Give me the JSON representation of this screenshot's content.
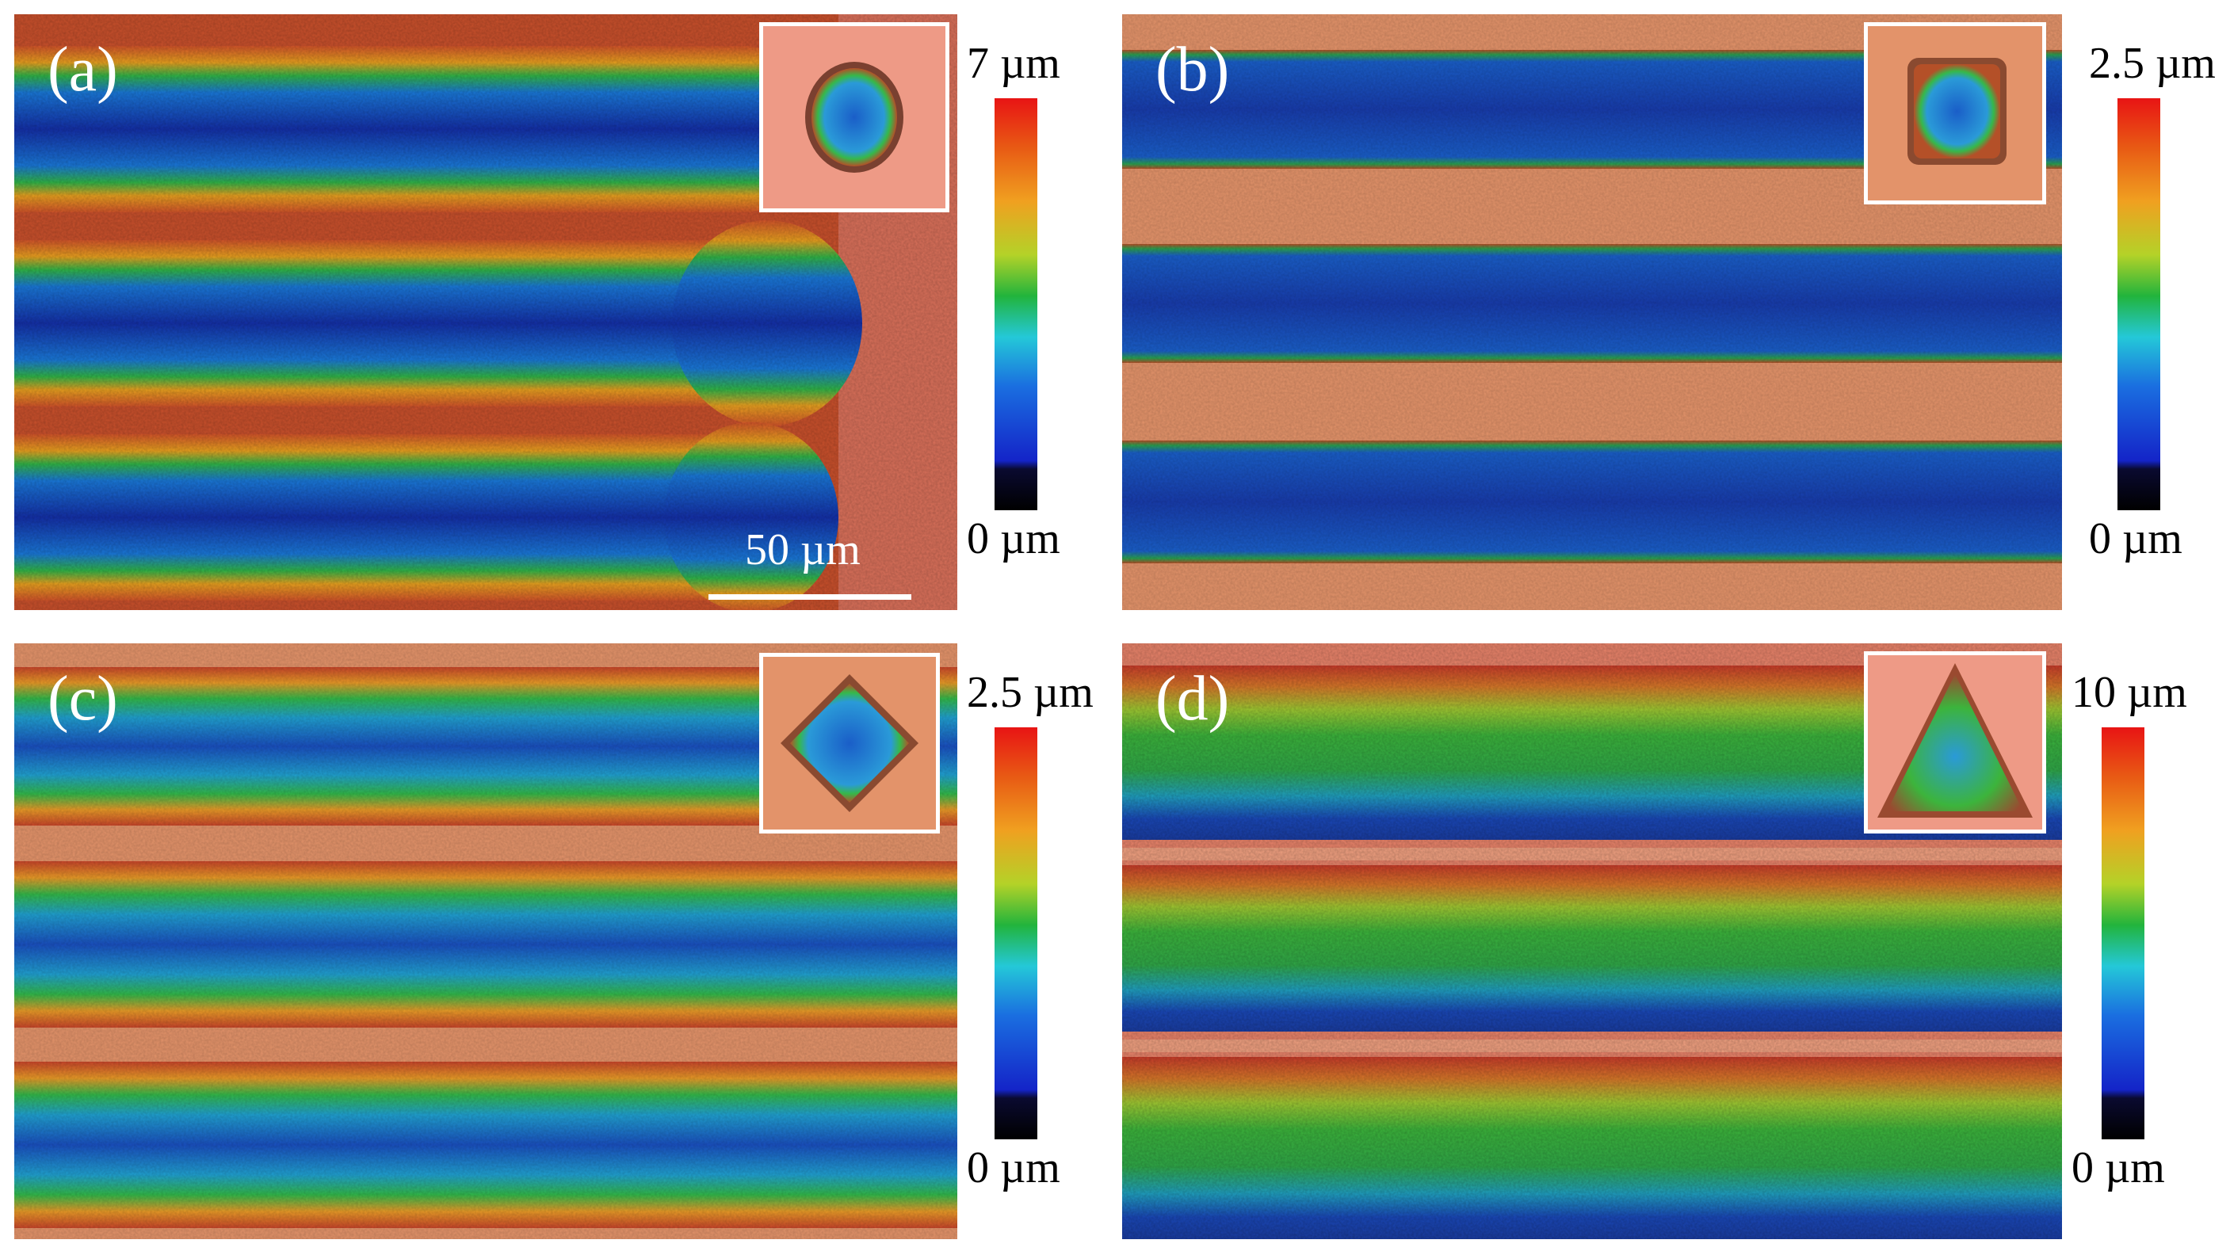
{
  "panels": [
    {
      "label": "(a)",
      "colorbar": {
        "max": "7 µm",
        "min": "0 µm"
      },
      "scale_bar": "50 µm",
      "inset_shape": "circle",
      "background_color": "#d9705a"
    },
    {
      "label": "(b)",
      "colorbar": {
        "max": "2.5 µm",
        "min": "0 µm"
      },
      "inset_shape": "square",
      "background_color": "#e3936a"
    },
    {
      "label": "(c)",
      "colorbar": {
        "max": "2.5 µm",
        "min": "0 µm"
      },
      "inset_shape": "diamond",
      "background_color": "#e3936a"
    },
    {
      "label": "(d)",
      "colorbar": {
        "max": "10 µm",
        "min": "0 µm"
      },
      "inset_shape": "triangle",
      "background_color": "#e8836a"
    }
  ],
  "colormap": [
    "#000000",
    "#1a28c8",
    "#1e8ce0",
    "#2ad0c8",
    "#22b43c",
    "#c8d228",
    "#f0a020",
    "#e85a14",
    "#e81414"
  ]
}
